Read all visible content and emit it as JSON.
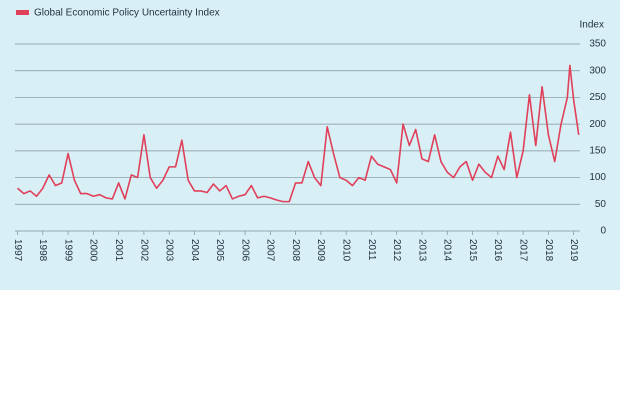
{
  "chart_data": {
    "type": "line",
    "title": "Global Economic Policy Uncertainty Index",
    "y_label": "Index",
    "x": [
      1997,
      1997.25,
      1997.5,
      1997.75,
      1998,
      1998.25,
      1998.5,
      1998.75,
      1999,
      1999.25,
      1999.5,
      1999.75,
      2000,
      2000.25,
      2000.5,
      2000.75,
      2001,
      2001.25,
      2001.5,
      2001.75,
      2002,
      2002.25,
      2002.5,
      2002.75,
      2003,
      2003.25,
      2003.5,
      2003.75,
      2004,
      2004.25,
      2004.5,
      2004.75,
      2005,
      2005.25,
      2005.5,
      2005.75,
      2006,
      2006.25,
      2006.5,
      2006.75,
      2007,
      2007.25,
      2007.5,
      2007.75,
      2008,
      2008.25,
      2008.5,
      2008.75,
      2009,
      2009.25,
      2009.5,
      2009.75,
      2010,
      2010.25,
      2010.5,
      2010.75,
      2011,
      2011.25,
      2011.5,
      2011.75,
      2012,
      2012.25,
      2012.5,
      2012.75,
      2013,
      2013.25,
      2013.5,
      2013.75,
      2014,
      2014.25,
      2014.5,
      2014.75,
      2015,
      2015.25,
      2015.5,
      2015.75,
      2016,
      2016.25,
      2016.5,
      2016.75,
      2017,
      2017.25,
      2017.5,
      2017.75,
      2018,
      2018.25,
      2018.5,
      2018.75,
      2018.85,
      2019,
      2019.2
    ],
    "series": [
      {
        "name": "Global Economic Policy Uncertainty Index",
        "color": "#e0405a",
        "values": [
          80,
          70,
          75,
          65,
          80,
          105,
          85,
          90,
          145,
          95,
          70,
          70,
          65,
          68,
          62,
          60,
          90,
          60,
          105,
          100,
          180,
          100,
          80,
          95,
          120,
          120,
          170,
          95,
          75,
          75,
          72,
          88,
          75,
          85,
          60,
          65,
          68,
          85,
          62,
          65,
          62,
          58,
          55,
          55,
          90,
          90,
          130,
          100,
          85,
          195,
          145,
          100,
          95,
          85,
          100,
          95,
          140,
          125,
          120,
          115,
          90,
          200,
          160,
          190,
          135,
          130,
          180,
          130,
          110,
          100,
          120,
          130,
          95,
          125,
          110,
          100,
          140,
          115,
          185,
          100,
          150,
          255,
          160,
          270,
          180,
          130,
          200,
          250,
          310,
          245,
          180
        ]
      }
    ],
    "xlim": [
      1996.9,
      2019.25
    ],
    "xticks": [
      1997,
      1998,
      1999,
      2000,
      2001,
      2002,
      2003,
      2004,
      2005,
      2006,
      2007,
      2008,
      2009,
      2010,
      2011,
      2012,
      2013,
      2014,
      2015,
      2016,
      2017,
      2018,
      2019
    ],
    "ylim": [
      0,
      350
    ],
    "yticks": [
      0,
      50,
      100,
      150,
      200,
      250,
      300,
      350
    ],
    "grid": true
  }
}
